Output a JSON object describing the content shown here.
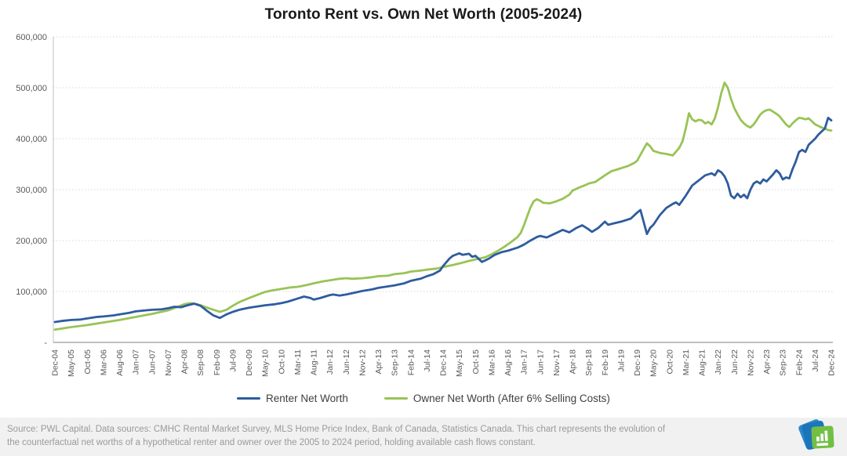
{
  "footer": {
    "source_text": "Source: PWL Capital. Data sources: CMHC Rental Market Survey, MLS Home Price Index, Bank of Canada, Statistics Canada. This chart represents the evolution of the counterfactual net worths of a hypothetical renter and owner over the 2005 to 2024 period, holding available cash flows constant."
  },
  "logo": {
    "name": "pwl-capital-logo",
    "blue": "#1b75bb",
    "light_blue": "#2c88c9",
    "green": "#72bf44"
  },
  "chart_data": {
    "type": "line",
    "title": "Toronto Rent vs. Own Net Worth (2005-2024)",
    "xlabel": "",
    "ylabel": "",
    "ylim": [
      0,
      600000
    ],
    "grid": "horizontal-dotted",
    "legend_position": "bottom-center",
    "months_total": 240,
    "x_start": "Dec-04",
    "x_end": "Dec-24",
    "x_tick_interval_months": 5,
    "x_tick_labels": [
      "Dec-04",
      "May-05",
      "Oct-05",
      "Mar-06",
      "Aug-06",
      "Jan-07",
      "Jun-07",
      "Nov-07",
      "Apr-08",
      "Sep-08",
      "Feb-09",
      "Jul-09",
      "Dec-09",
      "May-10",
      "Oct-10",
      "Mar-11",
      "Aug-11",
      "Jan-12",
      "Jun-12",
      "Nov-12",
      "Apr-13",
      "Sep-13",
      "Feb-14",
      "Jul-14",
      "Dec-14",
      "May-15",
      "Oct-15",
      "Mar-16",
      "Aug-16",
      "Jan-17",
      "Jun-17",
      "Nov-17",
      "Apr-18",
      "Sep-18",
      "Feb-19",
      "Jul-19",
      "Dec-19",
      "May-20",
      "Oct-20",
      "Mar-21",
      "Aug-21",
      "Jan-22",
      "Jun-22",
      "Nov-22",
      "Apr-23",
      "Sep-23",
      "Feb-24",
      "Jul-24",
      "Dec-24"
    ],
    "y_ticks": [
      {
        "label": "600,000",
        "value": 600000
      },
      {
        "label": "500,000",
        "value": 500000
      },
      {
        "label": "400,000",
        "value": 400000
      },
      {
        "label": "300,000",
        "value": 300000
      },
      {
        "label": "200,000",
        "value": 200000
      },
      {
        "label": "100,000",
        "value": 100000
      },
      {
        "label": "-",
        "value": 0
      }
    ],
    "series": [
      {
        "id": "renter",
        "name": "Renter Net Worth",
        "color": "#2e5c9e",
        "points": [
          [
            0,
            40000
          ],
          [
            2,
            42000
          ],
          [
            5,
            44000
          ],
          [
            8,
            45000
          ],
          [
            10,
            47000
          ],
          [
            13,
            50000
          ],
          [
            15,
            51000
          ],
          [
            18,
            53000
          ],
          [
            20,
            55000
          ],
          [
            23,
            58000
          ],
          [
            25,
            61000
          ],
          [
            28,
            63000
          ],
          [
            30,
            64000
          ],
          [
            33,
            65000
          ],
          [
            35,
            67000
          ],
          [
            37,
            70000
          ],
          [
            39,
            69000
          ],
          [
            41,
            73000
          ],
          [
            43,
            76000
          ],
          [
            45,
            72000
          ],
          [
            47,
            62000
          ],
          [
            49,
            53000
          ],
          [
            51,
            48000
          ],
          [
            53,
            55000
          ],
          [
            55,
            60000
          ],
          [
            57,
            64000
          ],
          [
            60,
            68000
          ],
          [
            63,
            71000
          ],
          [
            65,
            73000
          ],
          [
            68,
            75000
          ],
          [
            70,
            77000
          ],
          [
            72,
            80000
          ],
          [
            75,
            86000
          ],
          [
            77,
            90000
          ],
          [
            79,
            87000
          ],
          [
            80,
            84000
          ],
          [
            82,
            87000
          ],
          [
            85,
            93000
          ],
          [
            86,
            94000
          ],
          [
            88,
            92000
          ],
          [
            90,
            94000
          ],
          [
            93,
            98000
          ],
          [
            95,
            101000
          ],
          [
            98,
            104000
          ],
          [
            100,
            107000
          ],
          [
            103,
            110000
          ],
          [
            105,
            112000
          ],
          [
            108,
            116000
          ],
          [
            110,
            121000
          ],
          [
            113,
            125000
          ],
          [
            115,
            130000
          ],
          [
            117,
            134000
          ],
          [
            119,
            141000
          ],
          [
            120,
            150000
          ],
          [
            122,
            165000
          ],
          [
            123,
            170000
          ],
          [
            125,
            175000
          ],
          [
            126,
            172000
          ],
          [
            128,
            174000
          ],
          [
            129,
            168000
          ],
          [
            130,
            170000
          ],
          [
            132,
            158000
          ],
          [
            134,
            164000
          ],
          [
            136,
            172000
          ],
          [
            138,
            177000
          ],
          [
            140,
            180000
          ],
          [
            143,
            186000
          ],
          [
            145,
            192000
          ],
          [
            147,
            200000
          ],
          [
            149,
            207000
          ],
          [
            150,
            209000
          ],
          [
            152,
            206000
          ],
          [
            155,
            215000
          ],
          [
            157,
            221000
          ],
          [
            159,
            216000
          ],
          [
            161,
            224000
          ],
          [
            163,
            230000
          ],
          [
            165,
            222000
          ],
          [
            166,
            217000
          ],
          [
            168,
            225000
          ],
          [
            170,
            237000
          ],
          [
            171,
            231000
          ],
          [
            173,
            234000
          ],
          [
            175,
            237000
          ],
          [
            178,
            243000
          ],
          [
            180,
            255000
          ],
          [
            181,
            260000
          ],
          [
            183,
            213000
          ],
          [
            184,
            225000
          ],
          [
            185,
            231000
          ],
          [
            187,
            250000
          ],
          [
            189,
            264000
          ],
          [
            191,
            272000
          ],
          [
            192,
            275000
          ],
          [
            193,
            270000
          ],
          [
            195,
            288000
          ],
          [
            197,
            308000
          ],
          [
            199,
            318000
          ],
          [
            201,
            328000
          ],
          [
            203,
            332000
          ],
          [
            204,
            328000
          ],
          [
            205,
            338000
          ],
          [
            206,
            334000
          ],
          [
            207,
            326000
          ],
          [
            208,
            312000
          ],
          [
            209,
            288000
          ],
          [
            210,
            283000
          ],
          [
            211,
            292000
          ],
          [
            212,
            285000
          ],
          [
            213,
            290000
          ],
          [
            214,
            283000
          ],
          [
            215,
            300000
          ],
          [
            216,
            312000
          ],
          [
            217,
            316000
          ],
          [
            218,
            312000
          ],
          [
            219,
            320000
          ],
          [
            220,
            316000
          ],
          [
            222,
            330000
          ],
          [
            223,
            338000
          ],
          [
            224,
            332000
          ],
          [
            225,
            320000
          ],
          [
            226,
            324000
          ],
          [
            227,
            322000
          ],
          [
            228,
            340000
          ],
          [
            229,
            355000
          ],
          [
            230,
            374000
          ],
          [
            231,
            378000
          ],
          [
            232,
            374000
          ],
          [
            233,
            388000
          ],
          [
            234,
            394000
          ],
          [
            235,
            400000
          ],
          [
            236,
            408000
          ],
          [
            237,
            414000
          ],
          [
            238,
            420000
          ],
          [
            239,
            441000
          ],
          [
            240,
            436000
          ]
        ]
      },
      {
        "id": "owner",
        "name": "Owner Net Worth (After 6% Selling Costs)",
        "color": "#99c355",
        "points": [
          [
            0,
            25000
          ],
          [
            3,
            28000
          ],
          [
            5,
            30000
          ],
          [
            10,
            34000
          ],
          [
            15,
            39000
          ],
          [
            20,
            44000
          ],
          [
            25,
            50000
          ],
          [
            30,
            56000
          ],
          [
            35,
            63000
          ],
          [
            38,
            70000
          ],
          [
            40,
            75000
          ],
          [
            42,
            77000
          ],
          [
            44,
            75000
          ],
          [
            45,
            73000
          ],
          [
            48,
            66000
          ],
          [
            50,
            62000
          ],
          [
            51,
            60000
          ],
          [
            53,
            64000
          ],
          [
            55,
            72000
          ],
          [
            57,
            79000
          ],
          [
            60,
            87000
          ],
          [
            62,
            92000
          ],
          [
            65,
            99000
          ],
          [
            67,
            102000
          ],
          [
            70,
            105000
          ],
          [
            73,
            108000
          ],
          [
            75,
            109000
          ],
          [
            78,
            113000
          ],
          [
            80,
            116000
          ],
          [
            83,
            120000
          ],
          [
            85,
            122000
          ],
          [
            88,
            125000
          ],
          [
            90,
            126000
          ],
          [
            92,
            125000
          ],
          [
            95,
            126000
          ],
          [
            98,
            128000
          ],
          [
            100,
            130000
          ],
          [
            103,
            131000
          ],
          [
            105,
            134000
          ],
          [
            108,
            136000
          ],
          [
            110,
            139000
          ],
          [
            113,
            141000
          ],
          [
            115,
            143000
          ],
          [
            118,
            145000
          ],
          [
            120,
            148000
          ],
          [
            123,
            152000
          ],
          [
            125,
            155000
          ],
          [
            128,
            160000
          ],
          [
            130,
            163000
          ],
          [
            133,
            167000
          ],
          [
            135,
            173000
          ],
          [
            137,
            180000
          ],
          [
            139,
            188000
          ],
          [
            141,
            197000
          ],
          [
            143,
            207000
          ],
          [
            144,
            215000
          ],
          [
            145,
            230000
          ],
          [
            146,
            248000
          ],
          [
            147,
            265000
          ],
          [
            148,
            277000
          ],
          [
            149,
            281000
          ],
          [
            150,
            278000
          ],
          [
            151,
            274000
          ],
          [
            153,
            273000
          ],
          [
            155,
            277000
          ],
          [
            157,
            282000
          ],
          [
            159,
            290000
          ],
          [
            160,
            298000
          ],
          [
            162,
            304000
          ],
          [
            164,
            309000
          ],
          [
            165,
            312000
          ],
          [
            167,
            315000
          ],
          [
            170,
            328000
          ],
          [
            172,
            336000
          ],
          [
            174,
            340000
          ],
          [
            175,
            342000
          ],
          [
            177,
            346000
          ],
          [
            179,
            352000
          ],
          [
            180,
            357000
          ],
          [
            182,
            380000
          ],
          [
            183,
            391000
          ],
          [
            184,
            385000
          ],
          [
            185,
            376000
          ],
          [
            187,
            372000
          ],
          [
            189,
            370000
          ],
          [
            191,
            367000
          ],
          [
            193,
            382000
          ],
          [
            194,
            395000
          ],
          [
            195,
            420000
          ],
          [
            196,
            450000
          ],
          [
            197,
            438000
          ],
          [
            198,
            434000
          ],
          [
            199,
            437000
          ],
          [
            200,
            436000
          ],
          [
            201,
            430000
          ],
          [
            202,
            433000
          ],
          [
            203,
            428000
          ],
          [
            204,
            440000
          ],
          [
            205,
            462000
          ],
          [
            206,
            490000
          ],
          [
            207,
            510000
          ],
          [
            208,
            500000
          ],
          [
            209,
            478000
          ],
          [
            210,
            460000
          ],
          [
            211,
            448000
          ],
          [
            212,
            437000
          ],
          [
            213,
            430000
          ],
          [
            214,
            425000
          ],
          [
            215,
            422000
          ],
          [
            216,
            428000
          ],
          [
            217,
            437000
          ],
          [
            218,
            447000
          ],
          [
            219,
            453000
          ],
          [
            220,
            456000
          ],
          [
            221,
            457000
          ],
          [
            222,
            453000
          ],
          [
            223,
            449000
          ],
          [
            224,
            444000
          ],
          [
            225,
            436000
          ],
          [
            226,
            428000
          ],
          [
            227,
            423000
          ],
          [
            228,
            430000
          ],
          [
            229,
            436000
          ],
          [
            230,
            441000
          ],
          [
            231,
            440000
          ],
          [
            232,
            438000
          ],
          [
            233,
            440000
          ],
          [
            234,
            434000
          ],
          [
            235,
            428000
          ],
          [
            236,
            425000
          ],
          [
            237,
            422000
          ],
          [
            238,
            420000
          ],
          [
            239,
            417000
          ],
          [
            240,
            416000
          ]
        ]
      }
    ],
    "axis_colors": {
      "grid": "#d8d8d8",
      "axis_line": "#ababab",
      "tick_text": "#595959"
    }
  }
}
